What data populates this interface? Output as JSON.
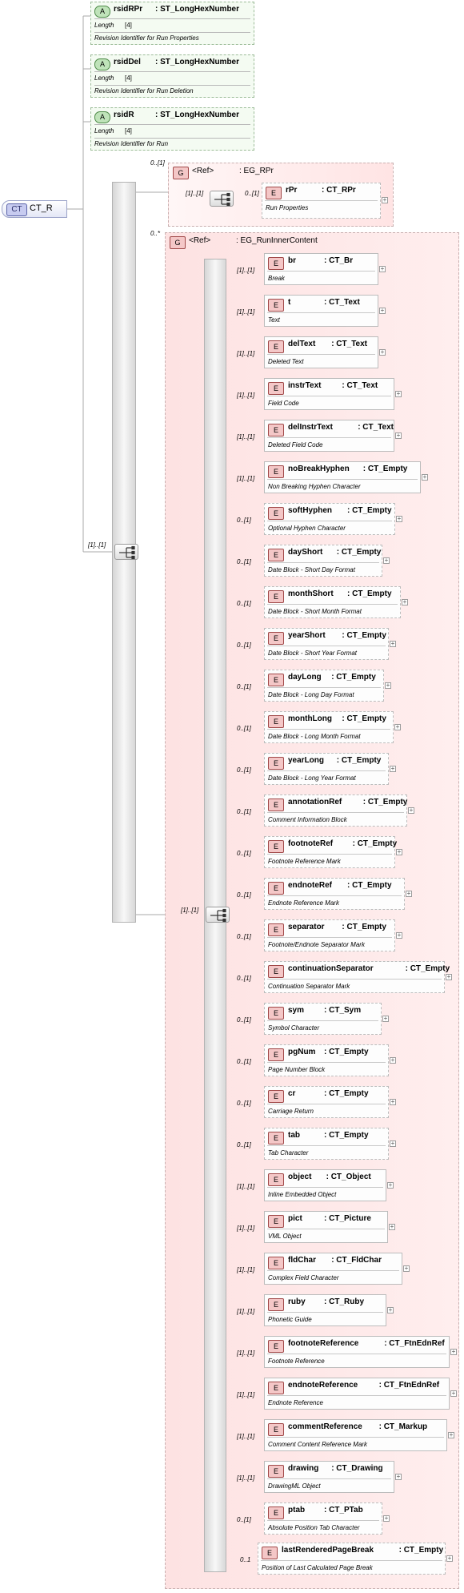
{
  "root": {
    "badge": "CT",
    "name": "CT_R"
  },
  "attributes": [
    {
      "badge": "A",
      "name": "rsidRPr",
      "type": ": ST_LongHexNumber",
      "facet_label": "Length",
      "facet_value": "[4]",
      "doc": "Revision Identifier for Run Properties"
    },
    {
      "badge": "A",
      "name": "rsidDel",
      "type": ": ST_LongHexNumber",
      "facet_label": "Length",
      "facet_value": "[4]",
      "doc": "Revision Identifier for Run Deletion"
    },
    {
      "badge": "A",
      "name": "rsidR",
      "type": ": ST_LongHexNumber",
      "facet_label": "Length",
      "facet_value": "[4]",
      "doc": "Revision Identifier for Run"
    }
  ],
  "outer_sequence_card": "[1]..[1]",
  "group_rpr": {
    "badge": "G",
    "ref": "<Ref>",
    "name": ": EG_RPr",
    "card": "0..[1]",
    "inner_seq_card": "[1]..[1]",
    "element": {
      "badge": "E",
      "name": "rPr",
      "type": ": CT_RPr",
      "doc": "Run Properties",
      "card": "0..[1]"
    }
  },
  "group_inner": {
    "badge": "G",
    "ref": "<Ref>",
    "name": ": EG_RunInnerContent",
    "card": "0..*",
    "seq_card": "[1]..[1]"
  },
  "elements": [
    {
      "badge": "E",
      "name": "br",
      "type": ": CT_Br",
      "doc": "Break",
      "card": "[1]..[1]"
    },
    {
      "badge": "E",
      "name": "t",
      "type": ": CT_Text",
      "doc": "Text",
      "card": "[1]..[1]"
    },
    {
      "badge": "E",
      "name": "delText",
      "type": ": CT_Text",
      "doc": "Deleted Text",
      "card": "[1]..[1]"
    },
    {
      "badge": "E",
      "name": "instrText",
      "type": ": CT_Text",
      "doc": "Field Code",
      "card": "[1]..[1]"
    },
    {
      "badge": "E",
      "name": "delInstrText",
      "type": ": CT_Text",
      "doc": "Deleted Field Code",
      "card": "[1]..[1]"
    },
    {
      "badge": "E",
      "name": "noBreakHyphen",
      "type": ": CT_Empty",
      "doc": "Non Breaking Hyphen Character",
      "card": "[1]..[1]"
    },
    {
      "badge": "E",
      "name": "softHyphen",
      "type": ": CT_Empty",
      "doc": "Optional Hyphen Character",
      "card": "0..[1]"
    },
    {
      "badge": "E",
      "name": "dayShort",
      "type": ": CT_Empty",
      "doc": "Date Block - Short Day Format",
      "card": "0..[1]"
    },
    {
      "badge": "E",
      "name": "monthShort",
      "type": ": CT_Empty",
      "doc": "Date Block - Short Month Format",
      "card": "0..[1]"
    },
    {
      "badge": "E",
      "name": "yearShort",
      "type": ": CT_Empty",
      "doc": "Date Block - Short Year Format",
      "card": "0..[1]"
    },
    {
      "badge": "E",
      "name": "dayLong",
      "type": ": CT_Empty",
      "doc": "Date Block - Long Day Format",
      "card": "0..[1]"
    },
    {
      "badge": "E",
      "name": "monthLong",
      "type": ": CT_Empty",
      "doc": "Date Block - Long Month Format",
      "card": "0..[1]"
    },
    {
      "badge": "E",
      "name": "yearLong",
      "type": ": CT_Empty",
      "doc": "Date Block - Long Year Format",
      "card": "0..[1]"
    },
    {
      "badge": "E",
      "name": "annotationRef",
      "type": ": CT_Empty",
      "doc": "Comment Information Block",
      "card": "0..[1]"
    },
    {
      "badge": "E",
      "name": "footnoteRef",
      "type": ": CT_Empty",
      "doc": "Footnote Reference Mark",
      "card": "0..[1]"
    },
    {
      "badge": "E",
      "name": "endnoteRef",
      "type": ": CT_Empty",
      "doc": "Endnote Reference Mark",
      "card": "0..[1]"
    },
    {
      "badge": "E",
      "name": "separator",
      "type": ": CT_Empty",
      "doc": "Footnote/Endnote Separator Mark",
      "card": "0..[1]"
    },
    {
      "badge": "E",
      "name": "continuationSeparator",
      "type": ": CT_Empty",
      "doc": "Continuation Separator Mark",
      "card": "0..[1]"
    },
    {
      "badge": "E",
      "name": "sym",
      "type": ": CT_Sym",
      "doc": "Symbol Character",
      "card": "0..[1]"
    },
    {
      "badge": "E",
      "name": "pgNum",
      "type": ": CT_Empty",
      "doc": "Page Number Block",
      "card": "0..[1]"
    },
    {
      "badge": "E",
      "name": "cr",
      "type": ": CT_Empty",
      "doc": "Carriage Return",
      "card": "0..[1]"
    },
    {
      "badge": "E",
      "name": "tab",
      "type": ": CT_Empty",
      "doc": "Tab Character",
      "card": "0..[1]"
    },
    {
      "badge": "E",
      "name": "object",
      "type": ": CT_Object",
      "doc": "Inline Embedded Object",
      "card": "[1]..[1]"
    },
    {
      "badge": "E",
      "name": "pict",
      "type": ": CT_Picture",
      "doc": "VML Object",
      "card": "[1]..[1]"
    },
    {
      "badge": "E",
      "name": "fldChar",
      "type": ": CT_FldChar",
      "doc": "Complex Field Character",
      "card": "[1]..[1]"
    },
    {
      "badge": "E",
      "name": "ruby",
      "type": ": CT_Ruby",
      "doc": "Phonetic Guide",
      "card": "[1]..[1]"
    },
    {
      "badge": "E",
      "name": "footnoteReference",
      "type": ": CT_FtnEdnRef",
      "doc": "Footnote Reference",
      "card": "[1]..[1]"
    },
    {
      "badge": "E",
      "name": "endnoteReference",
      "type": ": CT_FtnEdnRef",
      "doc": "Endnote Reference",
      "card": "[1]..[1]"
    },
    {
      "badge": "E",
      "name": "commentReference",
      "type": ": CT_Markup",
      "doc": "Comment Content Reference Mark",
      "card": "[1]..[1]"
    },
    {
      "badge": "E",
      "name": "drawing",
      "type": ": CT_Drawing",
      "doc": "DrawingML Object",
      "card": "[1]..[1]"
    },
    {
      "badge": "E",
      "name": "ptab",
      "type": ": CT_PTab",
      "doc": "Absolute Position Tab Character",
      "card": "0..[1]"
    },
    {
      "badge": "E",
      "name": "lastRenderedPageBreak",
      "type": ": CT_Empty",
      "doc": "Position of Last Calculated Page Break",
      "card": "0..1"
    }
  ]
}
